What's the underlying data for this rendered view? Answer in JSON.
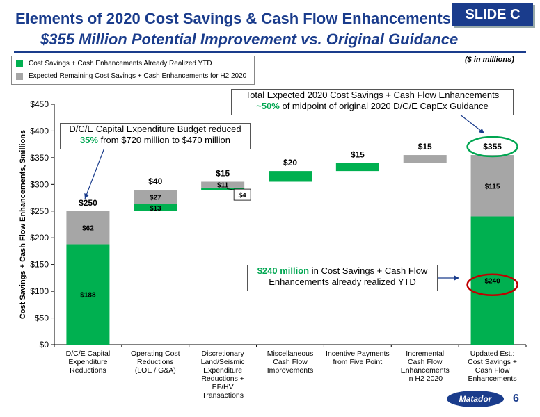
{
  "header": {
    "title": "Elements of 2020 Cost Savings & Cash Flow Enhancements",
    "subtitle": "$355 Million Potential Improvement vs. Original Guidance",
    "badge": "SLIDE C",
    "units": "($ in millions)"
  },
  "legend": {
    "items": [
      {
        "label": "Cost Savings + Cash Enhancements Already Realized YTD",
        "color": "#00b050"
      },
      {
        "label": "Expected Remaining Cost Savings + Cash Enhancements for H2 2020",
        "color": "#a6a6a6"
      }
    ]
  },
  "annotations": {
    "capex_line1": "D/C/E Capital Expenditure Budget reduced",
    "capex_pct": "35%",
    "capex_line2_rest": " from $720 million to $470 million",
    "total_line1": "Total Expected 2020 Cost Savings + Cash Flow Enhancements",
    "total_pct": "~50%",
    "total_line2_rest": " of midpoint of original 2020 D/C/E CapEx Guidance",
    "realized_bold": "$240 million",
    "realized_line1_rest": " in Cost Savings + Cash Flow",
    "realized_line2": "Enhancements already realized YTD"
  },
  "footer": {
    "page_number": "6",
    "logo_text": "Matador"
  },
  "colors": {
    "title": "#1a3c8c",
    "green": "#00b050",
    "gray": "#a6a6a6",
    "highlight_green_circle": "#00a651",
    "highlight_red_circle": "#c00000"
  },
  "chart_data": {
    "type": "bar",
    "subtype": "waterfall",
    "ylabel": "Cost Savings + Cash Flow Enhancements, $millions",
    "ylim": [
      0,
      450
    ],
    "yticks": [
      "$0",
      "$50",
      "$100",
      "$150",
      "$200",
      "$250",
      "$300",
      "$350",
      "$400",
      "$450"
    ],
    "grid": false,
    "legend_position": "top-left",
    "categories": [
      "D/C/E Capital Expenditure Reductions",
      "Operating Cost Reductions (LOE / G&A)",
      "Discretionary Land/Seismic Expenditure Reductions + EF/HV Transactions",
      "Miscellaneous Cash Flow Improvements",
      "Incentive Payments from Five Point",
      "Incremental Cash Flow Enhancements in H2 2020",
      "Updated Est.: Cost Savings + Cash Flow Enhancements"
    ],
    "category_lines": [
      [
        "D/C/E Capital",
        "Expenditure",
        "Reductions"
      ],
      [
        "Operating Cost",
        "Reductions",
        "(LOE / G&A)"
      ],
      [
        "Discretionary",
        "Land/Seismic",
        "Expenditure",
        "Reductions +",
        "EF/HV",
        "Transactions"
      ],
      [
        "Miscellaneous",
        "Cash Flow",
        "Improvements"
      ],
      [
        "Incentive Payments",
        "from Five Point"
      ],
      [
        "Incremental",
        "Cash Flow",
        "Enhancements",
        "in H2 2020"
      ],
      [
        "Updated Est.:",
        "Cost Savings +",
        "Cash Flow",
        "Enhancements"
      ]
    ],
    "bars": [
      {
        "base": 0,
        "realized": 188,
        "expected": 62,
        "total_label": "$250",
        "realized_label": "$188",
        "expected_label": "$62"
      },
      {
        "base": 250,
        "realized": 13,
        "expected": 27,
        "total_label": "$40",
        "realized_label": "$13",
        "expected_label": "$27"
      },
      {
        "base": 290,
        "realized": 4,
        "expected": 11,
        "total_label": "$15",
        "realized_label": "$4",
        "expected_label": "$11"
      },
      {
        "base": 305,
        "realized": 20,
        "expected": 0,
        "total_label": "$20",
        "realized_label": "",
        "expected_label": ""
      },
      {
        "base": 325,
        "realized": 15,
        "expected": 0,
        "total_label": "$15",
        "realized_label": "",
        "expected_label": ""
      },
      {
        "base": 340,
        "realized": 0,
        "expected": 15,
        "total_label": "$15",
        "realized_label": "",
        "expected_label": ""
      },
      {
        "base": 0,
        "realized": 240,
        "expected": 115,
        "total_label": "$355",
        "realized_label": "$240",
        "expected_label": "$115"
      }
    ]
  }
}
